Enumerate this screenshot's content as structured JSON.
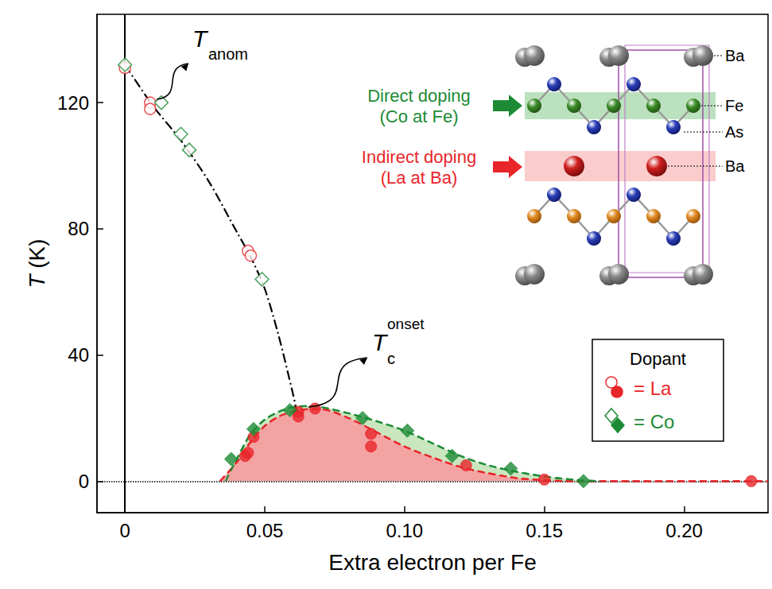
{
  "chart_data": {
    "type": "scatter",
    "xlabel": "Extra electron per Fe",
    "ylabel": "T (K)",
    "xlim": [
      -0.01,
      0.23
    ],
    "ylim": [
      -10,
      148
    ],
    "xticks": [
      0,
      0.05,
      {
        "value": 0.1,
        "label": "0.10"
      },
      0.15,
      {
        "value": 0.2,
        "label": "0.20"
      }
    ],
    "yticks": [
      0,
      40,
      80,
      120
    ],
    "grid": false,
    "legend": "lower right",
    "legend_title": "Dopant",
    "reference_lines": {
      "x": 0,
      "y": 0
    },
    "annotations": [
      {
        "text": "T",
        "sub": "anom"
      },
      {
        "text": "T",
        "sub": "c",
        "sup": "onset"
      }
    ],
    "anomaly_curve": {
      "color": "#000000",
      "line_style": "dashdot",
      "x": [
        0,
        0.01,
        0.02,
        0.03,
        0.04,
        0.045,
        0.05,
        0.055,
        0.06,
        0.0615
      ],
      "y": [
        132,
        119,
        108,
        95,
        79,
        71,
        61,
        46,
        28,
        22
      ]
    },
    "series": [
      {
        "name": "= La",
        "color": "#e8262a",
        "marker": "circle",
        "line_style": "dashed",
        "anomaly": {
          "x": [
            0,
            0.009,
            0.009,
            0.044,
            0.045
          ],
          "y": [
            131,
            120,
            118,
            73,
            71.5
          ]
        },
        "onset": {
          "x": [
            0.043,
            0.044,
            0.046,
            0.062,
            0.062,
            0.068,
            0.088,
            0.088,
            0.122,
            0.15,
            0.224
          ],
          "y": [
            8,
            9,
            14,
            22,
            20.5,
            23,
            15,
            11,
            5,
            0.5,
            0
          ]
        },
        "guide": {
          "x": [
            0.034,
            0.04,
            0.045,
            0.05,
            0.055,
            0.06,
            0.065,
            0.07,
            0.08,
            0.09,
            0.1,
            0.11,
            0.12,
            0.13,
            0.14,
            0.15,
            0.16,
            0.23
          ],
          "y": [
            0,
            6,
            12.5,
            17.5,
            20.5,
            22,
            22.8,
            22.8,
            20,
            15.5,
            11,
            7.5,
            4.5,
            2.5,
            1,
            0.3,
            0,
            0
          ]
        }
      },
      {
        "name": "= Co",
        "color": "#1d8b36",
        "marker": "diamond",
        "line_style": "dashed",
        "anomaly": {
          "x": [
            0,
            0.013,
            0.02,
            0.023,
            0.049
          ],
          "y": [
            132,
            120,
            110,
            105,
            64
          ]
        },
        "onset": {
          "x": [
            0.038,
            0.046,
            0.059,
            0.085,
            0.101,
            0.117,
            0.138,
            0.164
          ],
          "y": [
            7,
            16.5,
            22.5,
            20,
            16,
            8,
            4,
            0
          ]
        },
        "guide": {
          "x": [
            0.036,
            0.04,
            0.045,
            0.05,
            0.055,
            0.06,
            0.065,
            0.07,
            0.08,
            0.09,
            0.1,
            0.11,
            0.12,
            0.13,
            0.14,
            0.15,
            0.16,
            0.17
          ],
          "y": [
            0,
            7,
            15,
            19.5,
            22,
            23.5,
            23.8,
            23.5,
            21.5,
            19,
            16,
            12,
            8,
            5,
            3,
            1.5,
            0.5,
            0
          ]
        }
      }
    ],
    "inset": {
      "atoms": [
        "Ba",
        "Fe",
        "As",
        "Ba"
      ],
      "direct_doping": [
        "Direct doping",
        "(Co at Fe)"
      ],
      "indirect_doping": [
        "Indirect doping",
        "(La at Ba)"
      ]
    }
  }
}
